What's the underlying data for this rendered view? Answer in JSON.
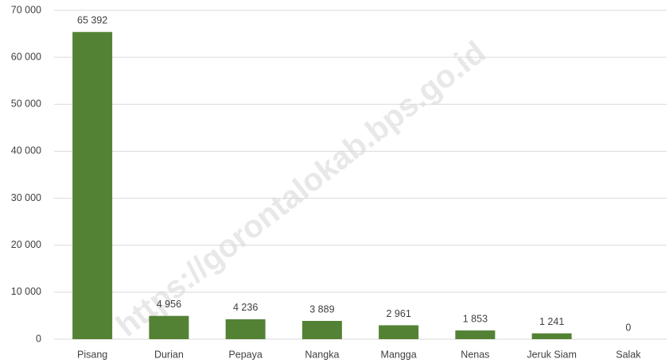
{
  "chart_data": {
    "type": "bar",
    "categories": [
      "Pisang",
      "Durian",
      "Pepaya",
      "Nangka",
      "Mangga",
      "Nenas",
      "Jeruk Siam",
      "Salak"
    ],
    "values": [
      65392,
      4956,
      4236,
      3889,
      2961,
      1853,
      1241,
      0
    ],
    "value_labels": [
      "65 392",
      "4 956",
      "4 236",
      "3 889",
      "2 961",
      "1 853",
      "1 241",
      "0"
    ],
    "color": "#548235",
    "ylim": [
      0,
      70000
    ],
    "yticks": [
      0,
      {
        "value": 10000,
        "label": "10 000"
      },
      {
        "value": 20000,
        "label": "20 000"
      },
      {
        "value": 30000,
        "label": "30 000"
      },
      {
        "value": 40000,
        "label": "40 000"
      },
      {
        "value": 50000,
        "label": "50 000"
      },
      {
        "value": 60000,
        "label": "60 000"
      },
      {
        "value": 70000,
        "label": "70 000"
      }
    ],
    "grid": true,
    "watermark": "https://gorontalokab.bps.go.id"
  }
}
